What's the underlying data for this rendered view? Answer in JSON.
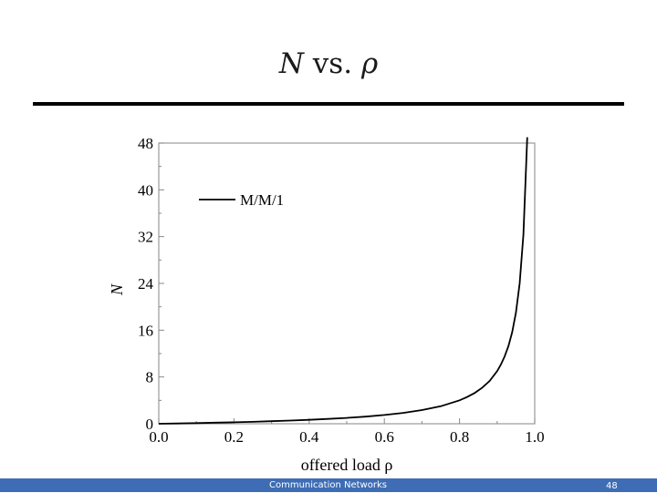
{
  "slide": {
    "title_symbol": "N",
    "title_middle": "vs.",
    "title_rho": "ρ",
    "footer_text": "Communication Networks",
    "page_number": "48"
  },
  "colors": {
    "footer_bar": "#3e6db5",
    "curve": "#000000"
  },
  "chart_data": {
    "type": "line",
    "title": "",
    "xlabel": "offered load ρ",
    "ylabel": "N",
    "xlim": [
      0.0,
      1.0
    ],
    "ylim": [
      0,
      48
    ],
    "xticks": [
      "0.0",
      "0.2",
      "0.4",
      "0.6",
      "0.8",
      "1.0"
    ],
    "yticks": [
      "0",
      "8",
      "16",
      "24",
      "32",
      "40",
      "48"
    ],
    "grid": false,
    "legend_position": "top-left",
    "series": [
      {
        "name": "M/M/1",
        "x": [
          0.0,
          0.05,
          0.1,
          0.15,
          0.2,
          0.25,
          0.3,
          0.35,
          0.4,
          0.45,
          0.5,
          0.55,
          0.6,
          0.65,
          0.7,
          0.75,
          0.8,
          0.82,
          0.84,
          0.86,
          0.88,
          0.9,
          0.91,
          0.92,
          0.93,
          0.94,
          0.95,
          0.96,
          0.97,
          0.98
        ],
        "y": [
          0.0,
          0.05,
          0.11,
          0.18,
          0.25,
          0.33,
          0.43,
          0.54,
          0.67,
          0.82,
          1.0,
          1.22,
          1.5,
          1.86,
          2.33,
          3.0,
          4.0,
          4.56,
          5.25,
          6.14,
          7.33,
          9.0,
          10.11,
          11.5,
          13.29,
          15.67,
          19.0,
          24.0,
          32.33,
          49.0
        ]
      }
    ]
  }
}
